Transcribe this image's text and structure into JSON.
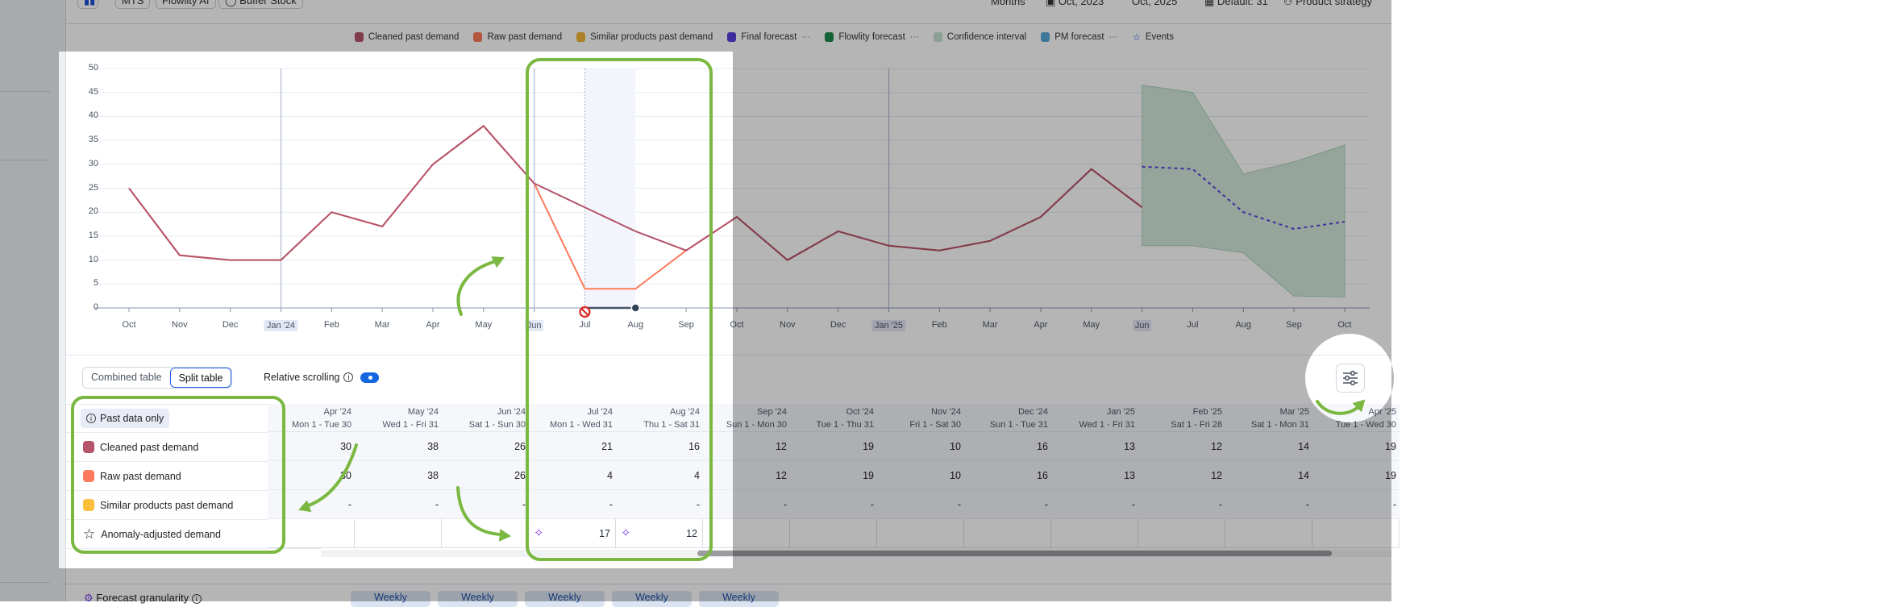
{
  "topbar": {
    "mts": "MTS",
    "ai": "Flowlity AI",
    "buffer": "Buffer Stock",
    "granularity": "Months",
    "date_from": "Oct, 2023",
    "date_to": "Oct, 2025",
    "default": "Default: 31",
    "strategy": "Product strategy"
  },
  "legend": [
    {
      "label": "Cleaned past demand",
      "color": "#b5546b",
      "more": false
    },
    {
      "label": "Raw past demand",
      "color": "#ff7a5c",
      "more": false
    },
    {
      "label": "Similar products past demand",
      "color": "#f4b63a",
      "more": false
    },
    {
      "label": "Final forecast",
      "color": "#5b3fe0",
      "more": true
    },
    {
      "label": "Flowlity forecast",
      "color": "#1f8a4c",
      "more": true
    },
    {
      "label": "Confidence interval",
      "color": "#c6e1cf",
      "more": false
    },
    {
      "label": "PM forecast",
      "color": "#5aa7d8",
      "more": true
    },
    {
      "label": "Events",
      "color": "#1d4ed8",
      "more": false,
      "icon": "star"
    }
  ],
  "more_label": "···",
  "chart_data": {
    "type": "line",
    "x": [
      "Oct",
      "Nov",
      "Dec",
      "Jan '24",
      "Feb",
      "Mar",
      "Apr",
      "May",
      "Jun",
      "Jul",
      "Aug",
      "Sep",
      "Oct",
      "Nov",
      "Dec",
      "Jan '25",
      "Feb",
      "Mar",
      "Apr",
      "May",
      "Jun",
      "Jul",
      "Aug",
      "Sep",
      "Oct"
    ],
    "highlighted_ticks": [
      "Jan '24",
      "Jan '25",
      "Jun"
    ],
    "ylim": [
      0,
      50
    ],
    "yticks": [
      0,
      5,
      10,
      15,
      20,
      25,
      30,
      35,
      40,
      45,
      50
    ],
    "grid": true,
    "series": [
      {
        "name": "Cleaned past demand",
        "color": "#b5546b",
        "values": [
          25,
          11,
          10,
          10,
          20,
          17,
          30,
          38,
          26,
          21,
          16,
          12,
          19,
          10,
          16,
          13,
          12,
          14,
          19,
          29,
          21,
          null,
          null,
          null,
          null
        ]
      },
      {
        "name": "Raw past demand",
        "color": "#ff7a5c",
        "values": [
          25,
          11,
          10,
          10,
          20,
          17,
          30,
          38,
          26,
          4,
          4,
          12,
          19,
          10,
          16,
          13,
          12,
          14,
          19,
          29,
          21,
          null,
          null,
          null,
          null
        ]
      },
      {
        "name": "Final forecast",
        "color": "#5b3fe0",
        "values": [
          null,
          null,
          null,
          null,
          null,
          null,
          null,
          null,
          null,
          null,
          null,
          null,
          null,
          null,
          null,
          null,
          null,
          null,
          null,
          null,
          29.5,
          29,
          20,
          16.5,
          18
        ]
      }
    ],
    "confidence_interval": {
      "upper": [
        46.5,
        45,
        28,
        30.5,
        34
      ],
      "lower": [
        13,
        13,
        11.5,
        2.5,
        2.3
      ],
      "start_index": 20
    },
    "anomaly_range": [
      "Jul",
      "Aug"
    ]
  },
  "table": {
    "combined_label": "Combined table",
    "split_label": "Split table",
    "relative_scrolling": "Relative scrolling",
    "past_only": "Past data only",
    "rows": [
      {
        "label": "Cleaned past demand",
        "color": "#b5546b"
      },
      {
        "label": "Raw past demand",
        "color": "#ff7a5c"
      },
      {
        "label": "Similar products past demand",
        "color": "#fbbf3c"
      },
      {
        "label": "Anomaly-adjusted demand",
        "icon": "star"
      }
    ],
    "columns": [
      {
        "month": "Apr '24",
        "range": "Mon 1 - Tue 30",
        "cleaned": "30",
        "raw": "30",
        "similar": "-",
        "anomaly": ""
      },
      {
        "month": "May '24",
        "range": "Wed 1 - Fri 31",
        "cleaned": "38",
        "raw": "38",
        "similar": "-",
        "anomaly": ""
      },
      {
        "month": "Jun '24",
        "range": "Sat 1 - Sun 30",
        "cleaned": "26",
        "raw": "26",
        "similar": "-",
        "anomaly": ""
      },
      {
        "month": "Jul '24",
        "range": "Mon 1 - Wed 31",
        "cleaned": "21",
        "raw": "4",
        "similar": "-",
        "anomaly": "17"
      },
      {
        "month": "Aug '24",
        "range": "Thu 1 - Sat 31",
        "cleaned": "16",
        "raw": "4",
        "similar": "-",
        "anomaly": "12"
      },
      {
        "month": "Sep '24",
        "range": "Sun 1 - Mon 30",
        "cleaned": "12",
        "raw": "12",
        "similar": "-",
        "anomaly": ""
      },
      {
        "month": "Oct '24",
        "range": "Tue 1 - Thu 31",
        "cleaned": "19",
        "raw": "19",
        "similar": "-",
        "anomaly": ""
      },
      {
        "month": "Nov '24",
        "range": "Fri 1 - Sat 30",
        "cleaned": "10",
        "raw": "10",
        "similar": "-",
        "anomaly": ""
      },
      {
        "month": "Dec '24",
        "range": "Sun 1 - Tue 31",
        "cleaned": "16",
        "raw": "16",
        "similar": "-",
        "anomaly": ""
      },
      {
        "month": "Jan '25",
        "range": "Wed 1 - Fri 31",
        "cleaned": "13",
        "raw": "13",
        "similar": "-",
        "anomaly": ""
      },
      {
        "month": "Feb '25",
        "range": "Sat 1 - Fri 28",
        "cleaned": "12",
        "raw": "12",
        "similar": "-",
        "anomaly": ""
      },
      {
        "month": "Mar '25",
        "range": "Sat 1 - Mon 31",
        "cleaned": "14",
        "raw": "14",
        "similar": "-",
        "anomaly": ""
      },
      {
        "month": "Apr '25",
        "range": "Tue 1 - Wed 30",
        "cleaned": "19",
        "raw": "19",
        "similar": "-",
        "anomaly": ""
      }
    ]
  },
  "bottom": {
    "forecast_granularity": "Forecast granularity",
    "weekly": [
      "Weekly",
      "Weekly",
      "Weekly",
      "Weekly",
      "Weekly"
    ]
  },
  "highlight_color": "#7ab842"
}
